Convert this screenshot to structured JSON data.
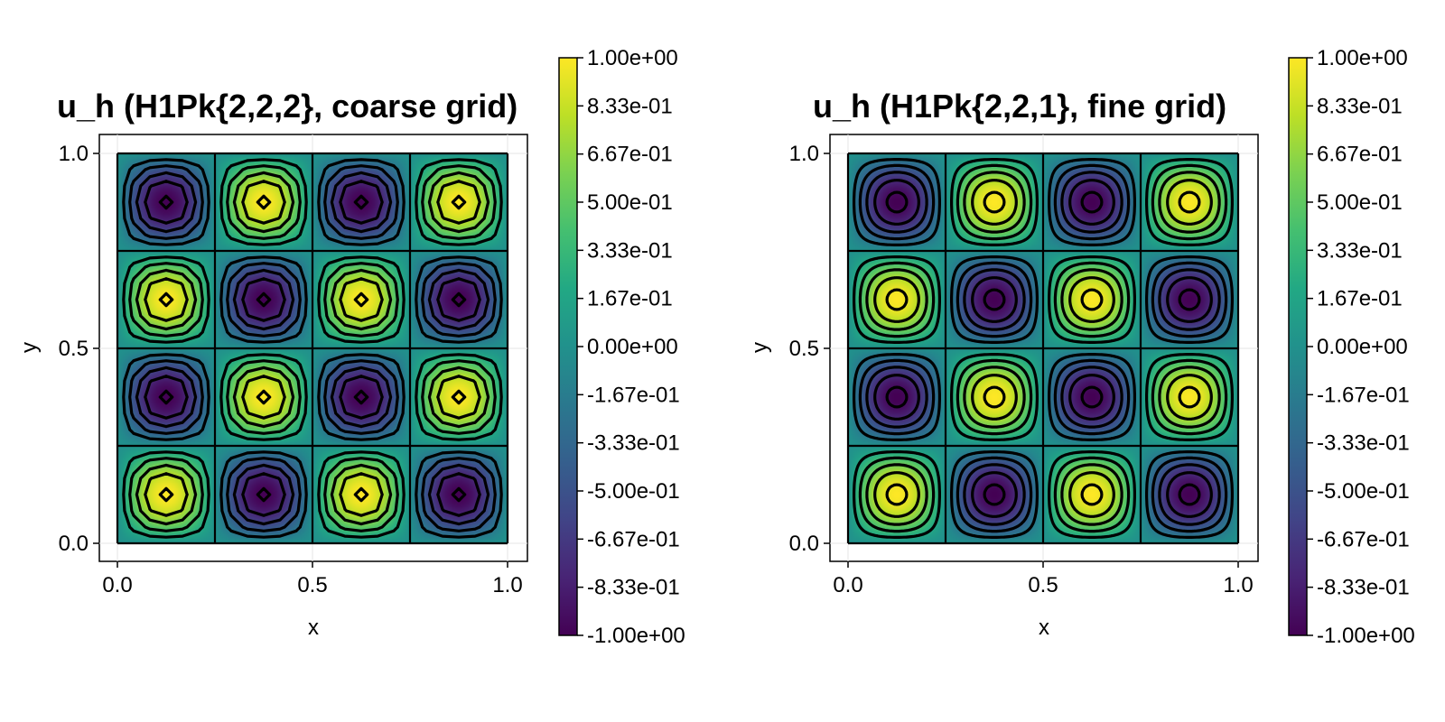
{
  "chart_data": [
    {
      "type": "heatmap",
      "title": "u_h (H1Pk{2,2,2}, coarse grid)",
      "xlabel": "x",
      "ylabel": "y",
      "xlim": [
        0,
        1
      ],
      "ylim": [
        0,
        1
      ],
      "xticks": [
        "0.0",
        "0.5",
        "1.0"
      ],
      "yticks": [
        "0.0",
        "0.5",
        "1.0"
      ],
      "grid": true,
      "function": "sin(4*pi*x) * sin(4*pi*y)",
      "mesh_cells": 4,
      "contour_levels": 11,
      "contour_style": "polygonal",
      "colormap": "viridis",
      "colorbar": {
        "range": [
          -1,
          1
        ],
        "ticks": [
          "1.00e+00",
          "8.33e-01",
          "6.67e-01",
          "5.00e-01",
          "3.33e-01",
          "1.67e-01",
          "0.00e+00",
          "-1.67e-01",
          "-3.33e-01",
          "-5.00e-01",
          "-6.67e-01",
          "-8.33e-01",
          "-1.00e+00"
        ]
      }
    },
    {
      "type": "heatmap",
      "title": "u_h (H1Pk{2,2,1}, fine grid)",
      "xlabel": "x",
      "ylabel": "y",
      "xlim": [
        0,
        1
      ],
      "ylim": [
        0,
        1
      ],
      "xticks": [
        "0.0",
        "0.5",
        "1.0"
      ],
      "yticks": [
        "0.0",
        "0.5",
        "1.0"
      ],
      "grid": true,
      "function": "sin(4*pi*x) * sin(4*pi*y)",
      "mesh_cells": 4,
      "contour_levels": 11,
      "contour_style": "smooth",
      "colormap": "viridis",
      "colorbar": {
        "range": [
          -1,
          1
        ],
        "ticks": [
          "1.00e+00",
          "8.33e-01",
          "6.67e-01",
          "5.00e-01",
          "3.33e-01",
          "1.67e-01",
          "0.00e+00",
          "-1.67e-01",
          "-3.33e-01",
          "-5.00e-01",
          "-6.67e-01",
          "-8.33e-01",
          "-1.00e+00"
        ]
      }
    }
  ]
}
